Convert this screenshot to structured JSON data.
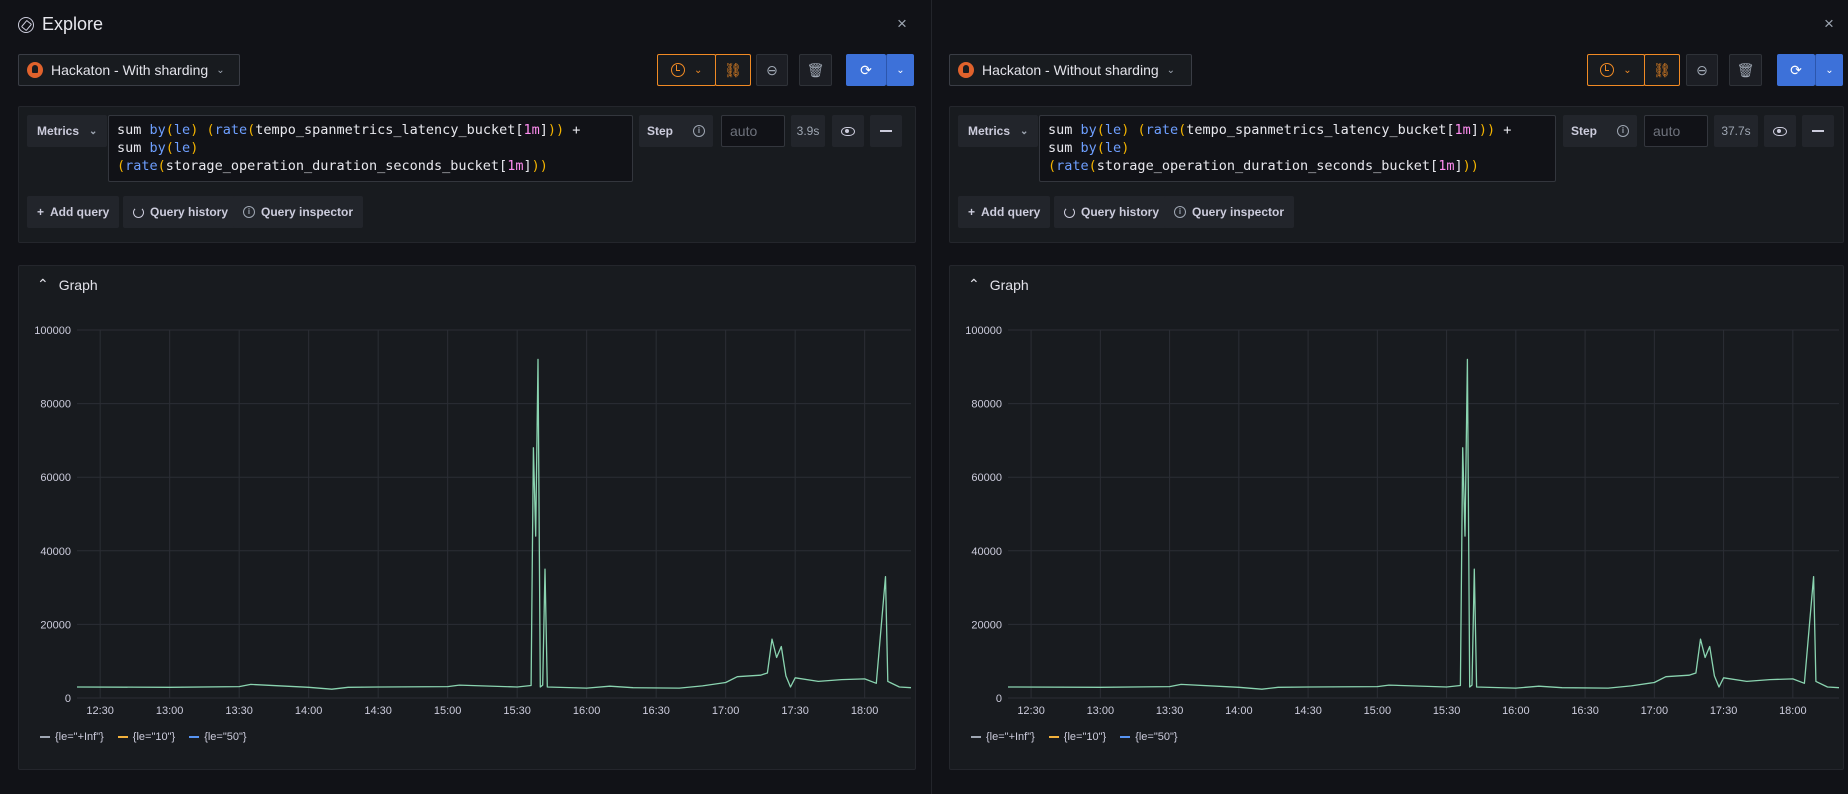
{
  "title": "Explore",
  "close_glyph": "×",
  "panes": [
    {
      "datasource": "Hackaton - With sharding",
      "query": {
        "editor_button": "Metrics",
        "step_label": "Step",
        "step_placeholder": "auto",
        "duration": "3.9s"
      },
      "buttons": {
        "add_query": "Add query",
        "query_history": "Query history",
        "query_inspector": "Query inspector"
      },
      "graph_title": "Graph"
    },
    {
      "datasource": "Hackaton - Without sharding",
      "query": {
        "editor_button": "Metrics",
        "step_label": "Step",
        "step_placeholder": "auto",
        "duration": "37.7s"
      },
      "buttons": {
        "add_query": "Add query",
        "query_history": "Query history",
        "query_inspector": "Query inspector"
      },
      "graph_title": "Graph"
    }
  ],
  "query_tokens": [
    [
      [
        "sum ",
        "t"
      ],
      [
        "by",
        "kw"
      ],
      [
        "(",
        "par"
      ],
      [
        "le",
        "kw"
      ],
      [
        ")",
        "par"
      ],
      [
        " (",
        "par"
      ],
      [
        "rate",
        "kw"
      ],
      [
        "(",
        "par"
      ],
      [
        "tempo_spanmetrics_latency_bucket",
        "t"
      ],
      [
        "[",
        "t"
      ],
      [
        "1m",
        "num"
      ],
      [
        "]",
        "t"
      ],
      [
        "))",
        "par"
      ],
      [
        " +",
        "t"
      ]
    ],
    [
      [
        "sum ",
        "t"
      ],
      [
        "by",
        "kw"
      ],
      [
        "(",
        "par"
      ],
      [
        "le",
        "kw"
      ],
      [
        ")",
        "par"
      ]
    ],
    [
      [
        "(",
        "par"
      ],
      [
        "rate",
        "kw"
      ],
      [
        "(",
        "par"
      ],
      [
        "storage_operation_duration_seconds_bucket",
        "t"
      ],
      [
        "[",
        "t"
      ],
      [
        "1m",
        "num"
      ],
      [
        "]",
        "t"
      ],
      [
        "))",
        "par"
      ]
    ]
  ],
  "colors": {
    "series_inf": "#8ad4b0",
    "series_10": "#f2b13c",
    "series_50": "#5794f2",
    "legend_inf": "#9fa7b3"
  },
  "chart_data": [
    {
      "type": "line",
      "ylim": [
        0,
        100000
      ],
      "yticks": [
        "100000",
        "80000",
        "60000",
        "40000",
        "20000",
        "0"
      ],
      "xticks": [
        "12:30",
        "13:00",
        "13:30",
        "14:00",
        "14:30",
        "15:00",
        "15:30",
        "16:00",
        "16:30",
        "17:00",
        "17:30",
        "18:00"
      ],
      "x_range": [
        "12:20",
        "18:20"
      ],
      "series": [
        {
          "name": "{le=\"+Inf\"}",
          "points": [
            [
              "12:20",
              3000
            ],
            [
              "13:00",
              2900
            ],
            [
              "13:30",
              3100
            ],
            [
              "13:35",
              3700
            ],
            [
              "14:00",
              2900
            ],
            [
              "14:10",
              2400
            ],
            [
              "14:17",
              2900
            ],
            [
              "14:30",
              3000
            ],
            [
              "15:00",
              3100
            ],
            [
              "15:05",
              3500
            ],
            [
              "15:30",
              3000
            ],
            [
              "15:36",
              3400
            ],
            [
              "15:37",
              68000
            ],
            [
              "15:38",
              44000
            ],
            [
              "15:39",
              92000
            ],
            [
              "15:40",
              3000
            ],
            [
              "15:41",
              3500
            ],
            [
              "15:42",
              35000
            ],
            [
              "15:43",
              3000
            ],
            [
              "16:00",
              2700
            ],
            [
              "16:10",
              3200
            ],
            [
              "16:20",
              2800
            ],
            [
              "16:40",
              2700
            ],
            [
              "16:50",
              3300
            ],
            [
              "17:00",
              4200
            ],
            [
              "17:05",
              5800
            ],
            [
              "17:15",
              6200
            ],
            [
              "17:18",
              6800
            ],
            [
              "17:20",
              16000
            ],
            [
              "17:22",
              11000
            ],
            [
              "17:24",
              14000
            ],
            [
              "17:26",
              6000
            ],
            [
              "17:28",
              3000
            ],
            [
              "17:30",
              5500
            ],
            [
              "17:40",
              4500
            ],
            [
              "17:50",
              5000
            ],
            [
              "18:00",
              5200
            ],
            [
              "18:05",
              4000
            ],
            [
              "18:09",
              33000
            ],
            [
              "18:10",
              4500
            ],
            [
              "18:15",
              3000
            ],
            [
              "18:20",
              2800
            ]
          ]
        },
        {
          "name": "{le=\"10\"}",
          "points": []
        },
        {
          "name": "{le=\"50\"}",
          "points": []
        }
      ]
    },
    {
      "type": "line",
      "ylim": [
        0,
        100000
      ],
      "yticks": [
        "100000",
        "80000",
        "60000",
        "40000",
        "20000",
        "0"
      ],
      "xticks": [
        "12:30",
        "13:00",
        "13:30",
        "14:00",
        "14:30",
        "15:00",
        "15:30",
        "16:00",
        "16:30",
        "17:00",
        "17:30",
        "18:00"
      ],
      "x_range": [
        "12:20",
        "18:20"
      ],
      "series": [
        {
          "name": "{le=\"+Inf\"}",
          "points": [
            [
              "12:20",
              3000
            ],
            [
              "13:00",
              2900
            ],
            [
              "13:30",
              3100
            ],
            [
              "13:35",
              3700
            ],
            [
              "14:00",
              2900
            ],
            [
              "14:10",
              2400
            ],
            [
              "14:17",
              2900
            ],
            [
              "14:30",
              3000
            ],
            [
              "15:00",
              3100
            ],
            [
              "15:05",
              3500
            ],
            [
              "15:30",
              3000
            ],
            [
              "15:36",
              3400
            ],
            [
              "15:37",
              68000
            ],
            [
              "15:38",
              44000
            ],
            [
              "15:39",
              92000
            ],
            [
              "15:40",
              3000
            ],
            [
              "15:41",
              3500
            ],
            [
              "15:42",
              35000
            ],
            [
              "15:43",
              3000
            ],
            [
              "16:00",
              2700
            ],
            [
              "16:10",
              3200
            ],
            [
              "16:20",
              2800
            ],
            [
              "16:40",
              2700
            ],
            [
              "16:50",
              3300
            ],
            [
              "17:00",
              4200
            ],
            [
              "17:05",
              5800
            ],
            [
              "17:15",
              6200
            ],
            [
              "17:18",
              6800
            ],
            [
              "17:20",
              16000
            ],
            [
              "17:22",
              11000
            ],
            [
              "17:24",
              14000
            ],
            [
              "17:26",
              6000
            ],
            [
              "17:28",
              3000
            ],
            [
              "17:30",
              5500
            ],
            [
              "17:40",
              4500
            ],
            [
              "17:50",
              5000
            ],
            [
              "18:00",
              5200
            ],
            [
              "18:05",
              4000
            ],
            [
              "18:09",
              33000
            ],
            [
              "18:10",
              4500
            ],
            [
              "18:15",
              3000
            ],
            [
              "18:20",
              2800
            ]
          ]
        },
        {
          "name": "{le=\"10\"}",
          "points": []
        },
        {
          "name": "{le=\"50\"}",
          "points": []
        }
      ]
    }
  ]
}
